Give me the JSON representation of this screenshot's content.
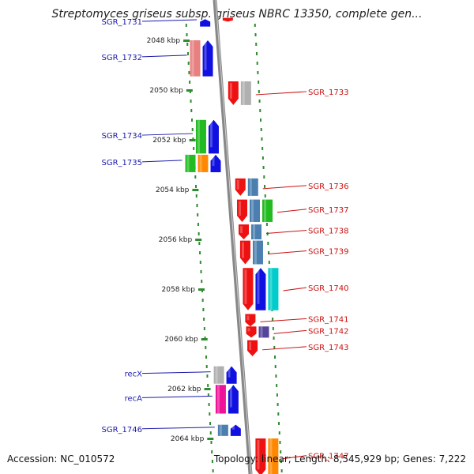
{
  "title": "Streptomyces griseus subsp. griseus NBRC 13350, complete gen...",
  "footer": {
    "accession": "Accession: NC_010572",
    "summary": "Topology: linear; Length: 8,545,929 bp; Genes: 7,222"
  },
  "colors": {
    "axis": "#888888",
    "tick": "#2e8b2e",
    "left_label": "#1a1aaa",
    "right_label": "#cc1111",
    "red": "#ee1111",
    "blue": "#1010e0",
    "green": "#22bb22",
    "orange": "#ff8800",
    "steel": "#4a7fb0",
    "gray": "#b0b0b0",
    "pink": "#ee1199",
    "salmon": "#e88080",
    "cyan": "#00cccc",
    "purple": "#554499"
  },
  "ruler": [
    {
      "label": "2048 kbp",
      "pos": 2048
    },
    {
      "label": "2050 kbp",
      "pos": 2050
    },
    {
      "label": "2052 kbp",
      "pos": 2052
    },
    {
      "label": "2054 kbp",
      "pos": 2054
    },
    {
      "label": "2056 kbp",
      "pos": 2056
    },
    {
      "label": "2058 kbp",
      "pos": 2058
    },
    {
      "label": "2060 kbp",
      "pos": 2060
    },
    {
      "label": "2062 kbp",
      "pos": 2062
    },
    {
      "label": "2064 kbp",
      "pos": 2064
    }
  ],
  "genes": [
    {
      "id": "g-top-red",
      "label": "",
      "side": "right",
      "start": 2047.1,
      "end": 2047.25,
      "colors": [
        "red"
      ]
    },
    {
      "id": "g1731",
      "label": "SGR_1731",
      "side": "left",
      "start": 2047.15,
      "end": 2047.45,
      "colors": [
        "blue"
      ]
    },
    {
      "id": "g1732",
      "label": "SGR_1732",
      "side": "left",
      "start": 2048.0,
      "end": 2049.45,
      "colors": [
        "salmon",
        "blue"
      ]
    },
    {
      "id": "g1733",
      "label": "SGR_1733",
      "side": "right",
      "start": 2049.65,
      "end": 2050.6,
      "colors": [
        "red",
        "gray"
      ]
    },
    {
      "id": "g1734",
      "label": "SGR_1734",
      "side": "left",
      "start": 2051.2,
      "end": 2052.55,
      "colors": [
        "green",
        "blue"
      ]
    },
    {
      "id": "g1735",
      "label": "SGR_1735",
      "side": "left",
      "start": 2052.6,
      "end": 2053.3,
      "colors": [
        "green",
        "orange",
        "blue"
      ]
    },
    {
      "id": "g1736",
      "label": "SGR_1736",
      "side": "right",
      "start": 2053.55,
      "end": 2054.25,
      "colors": [
        "red",
        "steel"
      ]
    },
    {
      "id": "g1737",
      "label": "SGR_1737",
      "side": "right",
      "start": 2054.4,
      "end": 2055.3,
      "colors": [
        "red",
        "steel",
        "green"
      ]
    },
    {
      "id": "g1738",
      "label": "SGR_1738",
      "side": "right",
      "start": 2055.4,
      "end": 2056.0,
      "colors": [
        "red",
        "steel"
      ]
    },
    {
      "id": "g1739",
      "label": "SGR_1739",
      "side": "right",
      "start": 2056.05,
      "end": 2057.0,
      "colors": [
        "red",
        "steel"
      ]
    },
    {
      "id": "g1740",
      "label": "SGR_1740",
      "side": "right",
      "start": 2057.15,
      "end": 2058.85,
      "colors": [
        "red",
        "blue",
        "cyan"
      ]
    },
    {
      "id": "g1741",
      "label": "SGR_1741",
      "side": "right",
      "start": 2059.0,
      "end": 2059.5,
      "colors": [
        "red"
      ]
    },
    {
      "id": "g1742",
      "label": "SGR_1742",
      "side": "right",
      "start": 2059.5,
      "end": 2059.95,
      "colors": [
        "red",
        "purple"
      ]
    },
    {
      "id": "g1743",
      "label": "SGR_1743",
      "side": "right",
      "start": 2060.05,
      "end": 2060.7,
      "colors": [
        "red"
      ]
    },
    {
      "id": "gRecX",
      "label": "recX",
      "side": "left",
      "start": 2061.1,
      "end": 2061.8,
      "colors": [
        "gray",
        "blue"
      ]
    },
    {
      "id": "gRecA",
      "label": "recA",
      "side": "left",
      "start": 2061.85,
      "end": 2063.0,
      "colors": [
        "pink",
        "blue"
      ]
    },
    {
      "id": "g1746",
      "label": "SGR_1746",
      "side": "left",
      "start": 2063.45,
      "end": 2063.9,
      "colors": [
        "steel",
        "blue"
      ]
    },
    {
      "id": "g1747",
      "label": "SGR_1747",
      "side": "right",
      "start": 2064.0,
      "end": 2065.5,
      "colors": [
        "red",
        "orange"
      ]
    }
  ]
}
